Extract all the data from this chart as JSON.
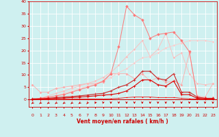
{
  "x": [
    0,
    1,
    2,
    3,
    4,
    5,
    6,
    7,
    8,
    9,
    10,
    11,
    12,
    13,
    14,
    15,
    16,
    17,
    18,
    19,
    20,
    21,
    22,
    23
  ],
  "background_color": "#cff0f0",
  "grid_color": "#ffffff",
  "xlabel": "Vent moyen/en rafales ( km/h )",
  "xlabel_color": "#cc0000",
  "xlabel_fontsize": 5.5,
  "tick_color": "#cc0000",
  "tick_fontsize": 4.5,
  "ylim": [
    -3,
    40
  ],
  "yticks": [
    0,
    5,
    10,
    15,
    20,
    25,
    30,
    35,
    40
  ],
  "series": [
    {
      "name": "pale_flat_start6",
      "y": [
        6.0,
        3.0,
        3.0,
        4.5,
        5.0,
        5.5,
        6.0,
        6.5,
        6.5,
        7.0,
        10.5,
        10.5,
        10.5,
        8.5,
        10.5,
        7.5,
        9.0,
        7.0,
        7.5,
        6.0,
        19.0,
        1.5,
        1.0,
        6.5
      ],
      "color": "#ffaaaa",
      "linewidth": 0.6,
      "marker": "D",
      "markersize": 1.5,
      "zorder": 2
    },
    {
      "name": "diagonal_upper",
      "y": [
        0.0,
        0.5,
        1.5,
        2.5,
        3.5,
        4.5,
        5.5,
        6.5,
        7.5,
        9.0,
        11.0,
        14.0,
        17.5,
        20.5,
        24.0,
        17.5,
        20.5,
        27.0,
        17.0,
        19.0,
        10.5,
        6.5,
        6.0,
        6.5
      ],
      "color": "#ffbbbb",
      "linewidth": 0.6,
      "marker": "D",
      "markersize": 1.2,
      "zorder": 2
    },
    {
      "name": "diagonal_lower",
      "y": [
        0.0,
        0.3,
        0.8,
        1.5,
        2.5,
        3.5,
        4.5,
        5.5,
        6.5,
        7.5,
        9.0,
        11.0,
        12.5,
        15.0,
        17.0,
        17.5,
        19.0,
        21.0,
        22.0,
        23.0,
        24.0,
        24.0,
        24.0,
        23.5
      ],
      "color": "#ffcccc",
      "linewidth": 0.6,
      "marker": "D",
      "markersize": 1.2,
      "zorder": 2
    },
    {
      "name": "peak_line",
      "y": [
        0.0,
        0.5,
        1.0,
        1.5,
        2.0,
        3.0,
        4.0,
        5.0,
        6.0,
        7.5,
        10.5,
        21.5,
        38.0,
        34.5,
        32.5,
        25.0,
        26.5,
        27.0,
        27.5,
        24.0,
        19.5,
        1.0,
        0.5,
        0.5
      ],
      "color": "#ff7777",
      "linewidth": 0.7,
      "marker": "D",
      "markersize": 1.8,
      "zorder": 3
    },
    {
      "name": "dark_mid",
      "y": [
        0.3,
        0.3,
        0.5,
        0.8,
        1.0,
        1.2,
        1.5,
        1.8,
        2.2,
        2.5,
        3.5,
        5.0,
        6.0,
        8.0,
        11.5,
        11.5,
        8.5,
        8.0,
        10.5,
        3.0,
        3.0,
        1.0,
        0.5,
        0.5
      ],
      "color": "#cc2222",
      "linewidth": 0.8,
      "marker": "+",
      "markersize": 2.5,
      "zorder": 4
    },
    {
      "name": "dark_lower",
      "y": [
        0.2,
        0.2,
        0.3,
        0.5,
        0.6,
        0.8,
        1.0,
        1.2,
        1.5,
        1.8,
        2.0,
        2.5,
        3.5,
        5.5,
        8.0,
        8.0,
        6.0,
        5.5,
        7.5,
        2.0,
        2.0,
        0.5,
        0.3,
        0.3
      ],
      "color": "#dd0000",
      "linewidth": 0.8,
      "marker": "+",
      "markersize": 2.5,
      "zorder": 4
    },
    {
      "name": "baseline",
      "y": [
        0.1,
        0.1,
        0.1,
        0.1,
        0.1,
        0.15,
        0.2,
        0.2,
        0.2,
        0.2,
        0.3,
        0.5,
        0.8,
        1.0,
        1.0,
        1.0,
        0.8,
        0.8,
        0.8,
        0.5,
        0.3,
        0.2,
        0.1,
        0.1
      ],
      "color": "#ee1111",
      "linewidth": 0.6,
      "marker": "+",
      "markersize": 2.0,
      "zorder": 4
    }
  ],
  "arrow_color": "#cc0000",
  "bottom_line_color": "#cc0000",
  "arrow_angles": [
    -45,
    -45,
    -45,
    -45,
    -45,
    -45,
    -45,
    -30,
    -20,
    -10,
    0,
    0,
    0,
    0,
    0,
    0,
    0,
    0,
    0,
    0,
    0,
    0,
    0,
    0
  ]
}
